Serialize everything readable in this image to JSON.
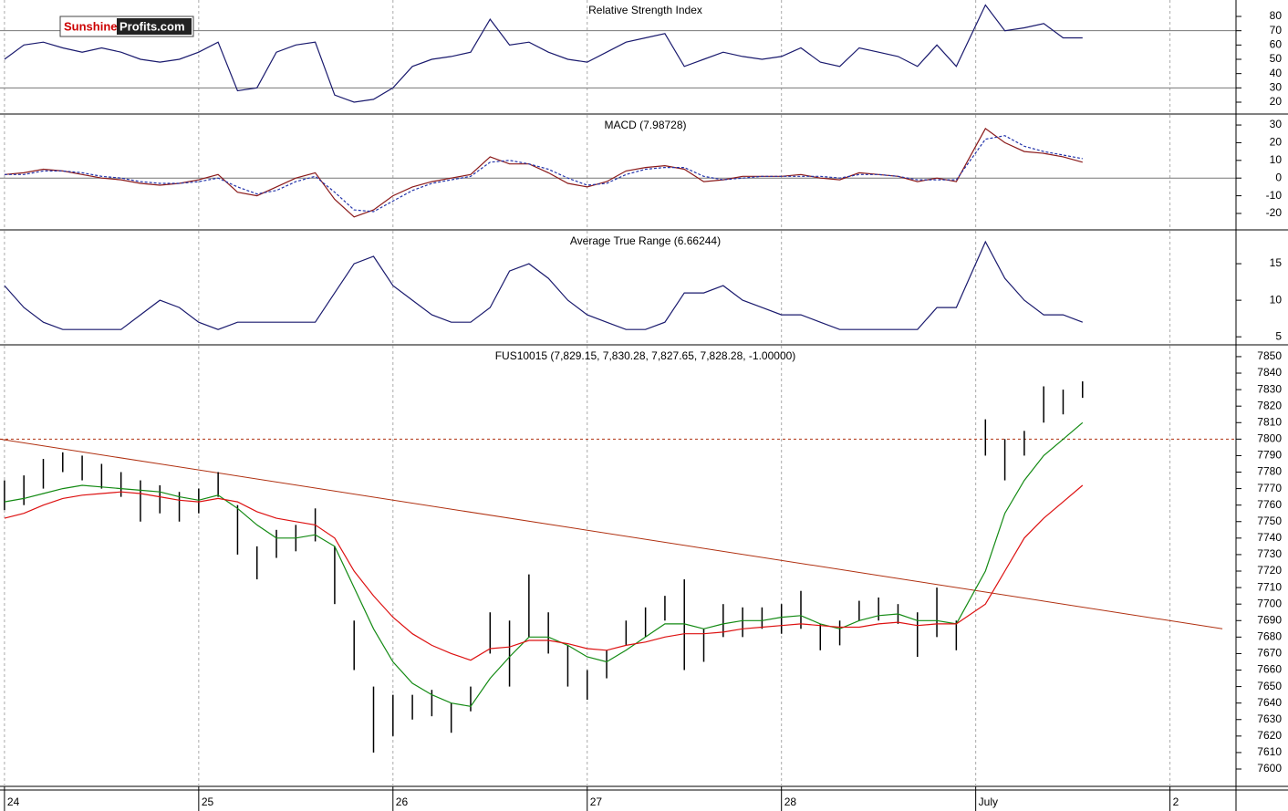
{
  "logo": [
    "Sunshine",
    "Profits.com"
  ],
  "chart_data": [
    {
      "type": "line",
      "title": "Relative Strength Index",
      "x": [
        0,
        0.1,
        0.2,
        0.3,
        0.4,
        0.5,
        0.6,
        0.7,
        0.8,
        0.9,
        1,
        1.1,
        1.2,
        1.3,
        1.4,
        1.5,
        1.6,
        1.7,
        1.8,
        1.9,
        2,
        2.1,
        2.2,
        2.3,
        2.4,
        2.5,
        2.6,
        2.7,
        2.8,
        2.9,
        3,
        3.1,
        3.2,
        3.3,
        3.4,
        3.5,
        3.6,
        3.7,
        3.8,
        3.9,
        4,
        4.1,
        4.2,
        4.3,
        4.4,
        4.5,
        4.6,
        4.7,
        4.8,
        4.9,
        5.05,
        5.15,
        5.25,
        5.35,
        5.45,
        5.55
      ],
      "xlim": [
        -0.023,
        6.34
      ],
      "ylim": [
        11.7,
        91.5
      ],
      "yticks": [
        20,
        30,
        40,
        50,
        60,
        70,
        80
      ],
      "hlines": [
        70,
        30
      ],
      "hline_color": "#777",
      "series": [
        {
          "color": "#1a1a6e",
          "values": [
            50,
            60,
            62,
            58,
            55,
            58,
            55,
            50,
            48,
            50,
            55,
            62,
            28,
            30,
            55,
            60,
            62,
            25,
            20,
            22,
            30,
            45,
            50,
            52,
            55,
            78,
            60,
            62,
            55,
            50,
            48,
            55,
            62,
            65,
            68,
            45,
            50,
            55,
            52,
            50,
            52,
            58,
            48,
            45,
            58,
            55,
            52,
            45,
            60,
            45,
            88,
            70,
            72,
            75,
            65,
            65
          ]
        }
      ]
    },
    {
      "type": "line",
      "title": "MACD (7.98728)",
      "x": [
        0,
        0.1,
        0.2,
        0.3,
        0.4,
        0.5,
        0.6,
        0.7,
        0.8,
        0.9,
        1,
        1.1,
        1.2,
        1.3,
        1.4,
        1.5,
        1.6,
        1.7,
        1.8,
        1.9,
        2,
        2.1,
        2.2,
        2.3,
        2.4,
        2.5,
        2.6,
        2.7,
        2.8,
        2.9,
        3,
        3.1,
        3.2,
        3.3,
        3.4,
        3.5,
        3.6,
        3.7,
        3.8,
        3.9,
        4,
        4.1,
        4.2,
        4.3,
        4.4,
        4.5,
        4.6,
        4.7,
        4.8,
        4.9,
        5.05,
        5.15,
        5.25,
        5.35,
        5.45,
        5.55
      ],
      "xlim": [
        -0.023,
        6.34
      ],
      "ylim": [
        -29.3,
        35.7
      ],
      "yticks": [
        -20,
        -10,
        0,
        10,
        20,
        30
      ],
      "hlines": [
        0
      ],
      "hline_color": "#777",
      "series": [
        {
          "color": "#8b1a1a",
          "values": [
            2,
            3,
            5,
            4,
            2,
            0,
            -1,
            -3,
            -4,
            -3,
            -1,
            2,
            -8,
            -10,
            -5,
            0,
            3,
            -12,
            -22,
            -18,
            -10,
            -5,
            -2,
            0,
            2,
            12,
            8,
            8,
            3,
            -3,
            -5,
            -2,
            4,
            6,
            7,
            5,
            -2,
            -1,
            1,
            1,
            1,
            2,
            0,
            -1,
            3,
            2,
            1,
            -2,
            0,
            -2,
            28,
            20,
            15,
            14,
            12,
            9
          ]
        },
        {
          "color": "#2233aa",
          "dashed": true,
          "values": [
            2,
            2,
            4,
            4,
            3,
            1,
            0,
            -2,
            -3,
            -3,
            -2,
            0,
            -5,
            -9,
            -7,
            -2,
            1,
            -8,
            -18,
            -19,
            -13,
            -7,
            -3,
            -1,
            1,
            9,
            10,
            8,
            5,
            0,
            -4,
            -3,
            2,
            5,
            6,
            6,
            1,
            -1,
            0,
            1,
            1,
            1,
            1,
            0,
            2,
            2,
            1,
            -1,
            -1,
            -1,
            22,
            24,
            18,
            15,
            13,
            11
          ]
        }
      ]
    },
    {
      "type": "line",
      "title": "Average True Range (6.66244)",
      "x": [
        0,
        0.1,
        0.2,
        0.3,
        0.4,
        0.5,
        0.6,
        0.7,
        0.8,
        0.9,
        1,
        1.1,
        1.2,
        1.3,
        1.4,
        1.5,
        1.6,
        1.7,
        1.8,
        1.9,
        2,
        2.1,
        2.2,
        2.3,
        2.4,
        2.5,
        2.6,
        2.7,
        2.8,
        2.9,
        3,
        3.1,
        3.2,
        3.3,
        3.4,
        3.5,
        3.6,
        3.7,
        3.8,
        3.9,
        4,
        4.1,
        4.2,
        4.3,
        4.4,
        4.5,
        4.6,
        4.7,
        4.8,
        4.9,
        5.05,
        5.15,
        5.25,
        5.35,
        5.45,
        5.55
      ],
      "xlim": [
        -0.023,
        6.34
      ],
      "ylim": [
        3.9,
        19.5
      ],
      "yticks": [
        5,
        10,
        15
      ],
      "series": [
        {
          "color": "#1a1a6e",
          "values": [
            12,
            9,
            7,
            6,
            6,
            6,
            6,
            8,
            10,
            9,
            7,
            6,
            7,
            7,
            7,
            7,
            7,
            11,
            15,
            16,
            12,
            10,
            8,
            7,
            7,
            9,
            14,
            15,
            13,
            10,
            8,
            7,
            6,
            6,
            7,
            11,
            11,
            12,
            10,
            9,
            8,
            8,
            7,
            6,
            6,
            6,
            6,
            6,
            9,
            9,
            18,
            13,
            10,
            8,
            8,
            7
          ]
        }
      ]
    },
    {
      "type": "hilo",
      "title": "FUS10015 (7,829.15, 7,830.28, 7,827.65, 7,828.28, -1.00000)",
      "x": [
        0,
        0.1,
        0.2,
        0.3,
        0.4,
        0.5,
        0.6,
        0.7,
        0.8,
        0.9,
        1,
        1.1,
        1.2,
        1.3,
        1.4,
        1.5,
        1.6,
        1.7,
        1.8,
        1.9,
        2,
        2.1,
        2.2,
        2.3,
        2.4,
        2.5,
        2.6,
        2.7,
        2.8,
        2.9,
        3,
        3.1,
        3.2,
        3.3,
        3.4,
        3.5,
        3.6,
        3.7,
        3.8,
        3.9,
        4,
        4.1,
        4.2,
        4.3,
        4.4,
        4.5,
        4.6,
        4.7,
        4.8,
        4.9,
        5.05,
        5.15,
        5.25,
        5.35,
        5.45,
        5.55
      ],
      "xlim": [
        -0.023,
        6.34
      ],
      "ylim": [
        7589.5,
        7856.6
      ],
      "yticks": [
        7600,
        7610,
        7620,
        7630,
        7640,
        7650,
        7660,
        7670,
        7680,
        7690,
        7700,
        7710,
        7720,
        7730,
        7740,
        7750,
        7760,
        7770,
        7780,
        7790,
        7800,
        7810,
        7820,
        7830,
        7840,
        7850
      ],
      "xticks": [
        {
          "value": 0,
          "label": "24"
        },
        {
          "value": 1,
          "label": "25"
        },
        {
          "value": 2,
          "label": "26"
        },
        {
          "value": 3,
          "label": "27"
        },
        {
          "value": 4,
          "label": "28"
        },
        {
          "value": 5,
          "label": "July"
        },
        {
          "value": 6,
          "label": "2"
        }
      ],
      "high": [
        7775,
        7778,
        7788,
        7792,
        7790,
        7785,
        7780,
        7775,
        7772,
        7768,
        7770,
        7780,
        7760,
        7735,
        7745,
        7748,
        7758,
        7735,
        7690,
        7650,
        7645,
        7645,
        7648,
        7640,
        7650,
        7695,
        7690,
        7718,
        7695,
        7675,
        7660,
        7672,
        7690,
        7698,
        7705,
        7715,
        7685,
        7700,
        7698,
        7698,
        7700,
        7708,
        7688,
        7690,
        7702,
        7704,
        7700,
        7695,
        7710,
        7690,
        7812,
        7800,
        7805,
        7832,
        7830,
        7835
      ],
      "low": [
        7757,
        7760,
        7770,
        7780,
        7775,
        7770,
        7765,
        7750,
        7755,
        7750,
        7755,
        7765,
        7730,
        7715,
        7728,
        7732,
        7738,
        7700,
        7660,
        7610,
        7620,
        7630,
        7632,
        7622,
        7635,
        7670,
        7650,
        7680,
        7670,
        7650,
        7642,
        7655,
        7675,
        7680,
        7690,
        7660,
        7665,
        7680,
        7680,
        7685,
        7682,
        7685,
        7672,
        7675,
        7690,
        7690,
        7688,
        7668,
        7680,
        7672,
        7790,
        7775,
        7790,
        7810,
        7815,
        7825
      ],
      "bar_color": "#000",
      "series": [
        {
          "color": "#138a13",
          "values": [
            7762,
            7764,
            7767,
            7770,
            7772,
            7771,
            7770,
            7769,
            7768,
            7765,
            7763,
            7766,
            7758,
            7748,
            7740,
            7740,
            7742,
            7735,
            7710,
            7685,
            7665,
            7652,
            7645,
            7640,
            7638,
            7655,
            7668,
            7680,
            7680,
            7675,
            7668,
            7665,
            7672,
            7680,
            7688,
            7688,
            7685,
            7688,
            7690,
            7690,
            7692,
            7693,
            7688,
            7685,
            7690,
            7693,
            7694,
            7690,
            7690,
            7688,
            7720,
            7755,
            7775,
            7790,
            7800,
            7810
          ]
        },
        {
          "color": "#dd1111",
          "values": [
            7752,
            7755,
            7760,
            7764,
            7766,
            7767,
            7768,
            7767,
            7765,
            7763,
            7762,
            7764,
            7762,
            7756,
            7752,
            7750,
            7748,
            7740,
            7720,
            7705,
            7692,
            7682,
            7675,
            7670,
            7666,
            7673,
            7674,
            7678,
            7678,
            7676,
            7673,
            7672,
            7675,
            7677,
            7680,
            7682,
            7682,
            7683,
            7685,
            7686,
            7687,
            7688,
            7687,
            7686,
            7686,
            7688,
            7689,
            7687,
            7688,
            7688,
            7700,
            7720,
            7740,
            7752,
            7762,
            7772
          ]
        }
      ],
      "hlines": [
        7800
      ],
      "hline_color": "#b03010",
      "trendline": {
        "x": [
          -0.023,
          6.27
        ],
        "values": [
          7800,
          7685
        ],
        "color": "#b03010"
      }
    }
  ]
}
